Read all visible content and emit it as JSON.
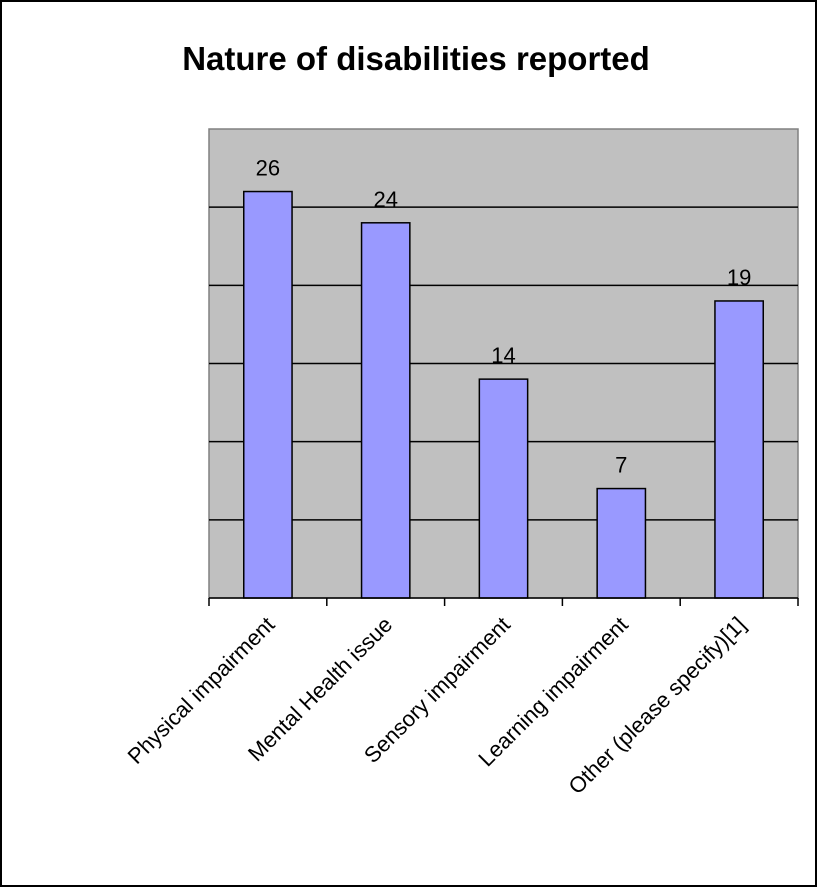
{
  "chart_data": {
    "type": "bar",
    "title": "Nature of disabilities reported",
    "xlabel": "",
    "ylabel": "",
    "categories": [
      "Physical impairment",
      "Mental Health issue",
      "Sensory impairment",
      "Learning impairment",
      "Other (please specify)[1]"
    ],
    "values": [
      26,
      24,
      14,
      7,
      19
    ],
    "ylim": [
      0,
      30
    ],
    "ytick_step": 5,
    "grid": true,
    "legend": "none",
    "colors": {
      "bar_fill": "#9999ff",
      "bar_stroke": "#000000",
      "plot_background": "#c0c0c0",
      "gridline": "#000000"
    }
  }
}
